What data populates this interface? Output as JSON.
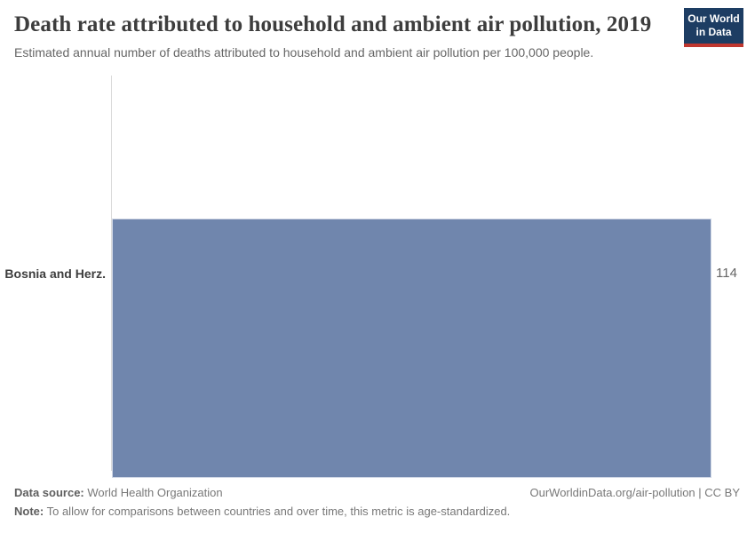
{
  "header": {
    "title": "Death rate attributed to household and ambient air pollution, 2019",
    "subtitle": "Estimated annual number of deaths attributed to household and ambient air pollution per 100,000 people.",
    "logo": {
      "line1": "Our World",
      "line2": "in Data"
    }
  },
  "chart_data": {
    "type": "bar",
    "orientation": "horizontal",
    "title": "Death rate attributed to household and ambient air pollution, 2019",
    "categories": [
      "Bosnia and Herz."
    ],
    "values": [
      114
    ],
    "value_labels": [
      "114"
    ],
    "xlim": [
      0,
      114
    ],
    "xlabel": "",
    "ylabel": "",
    "grid": false,
    "legend": "none",
    "bar_color": "#7086ad",
    "axis_line_color": "#dadada"
  },
  "footer": {
    "data_source_label": "Data source:",
    "data_source_value": "World Health Organization",
    "note_label": "Note:",
    "note_value": "To allow for comparisons between countries and over time, this metric is age-standardized.",
    "credit": "OurWorldinData.org/air-pollution | CC BY"
  },
  "colors": {
    "logo_navy": "#1d3d63",
    "logo_red": "#c0372f",
    "bar": "#7086ad",
    "title_text": "#3d3d3d",
    "subtitle_text": "#666666",
    "footer_text": "#787878"
  }
}
